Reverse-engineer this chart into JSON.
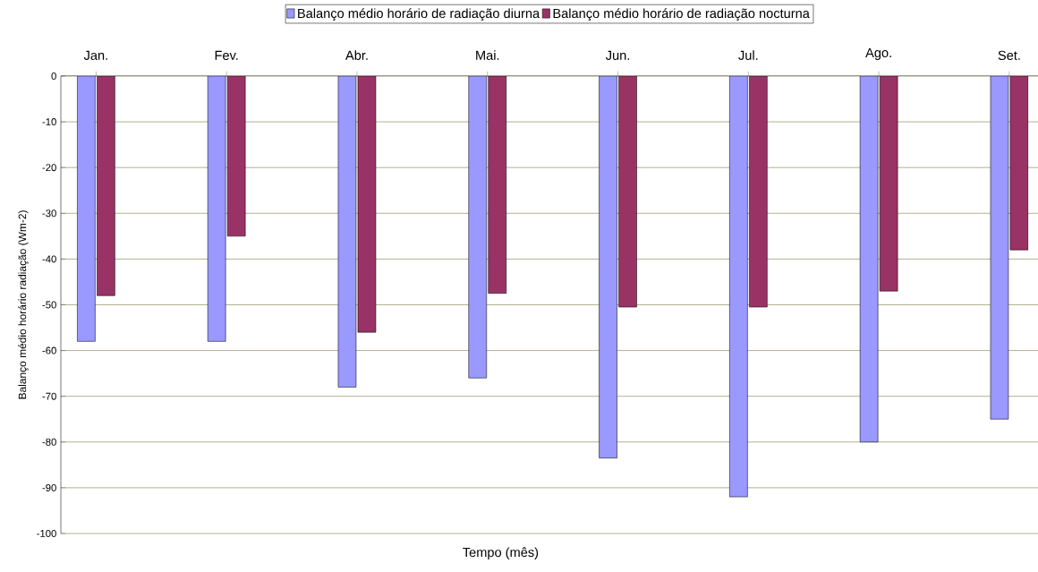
{
  "chart_data": {
    "type": "bar",
    "xlabel": "Tempo (mês)",
    "ylabel": "Balanço médio horário radiação (Wm-2)",
    "categories": [
      "Jan.",
      "Fev.",
      "Abr.",
      "Mai.",
      "Jun.",
      "Jul.",
      "Ago.",
      "Set."
    ],
    "series": [
      {
        "name": "Balanço médio horário de radiação diurna",
        "color": "#9999ff",
        "values": [
          -58,
          -58,
          -68,
          -66,
          -83.5,
          -92,
          -80,
          -75
        ]
      },
      {
        "name": "Balanço médio horário de radiação nocturna",
        "color": "#993366",
        "values": [
          -48,
          -35,
          -56,
          -47.5,
          -50.5,
          -50.5,
          -47,
          -38
        ]
      }
    ],
    "ylim": [
      -100,
      0
    ],
    "yticks": [
      -100,
      -90,
      -80,
      -70,
      -60,
      -50,
      -40,
      -30,
      -20,
      -10,
      0
    ],
    "grid": "y",
    "legend": "top"
  }
}
